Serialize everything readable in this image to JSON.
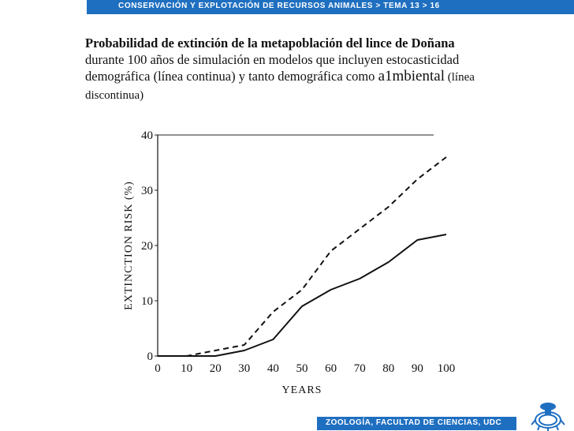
{
  "header": {
    "breadcrumb": "CONSERVACIÓN Y EXPLOTACIÓN DE RECURSOS ANIMALES > TEMA 13 > 16"
  },
  "caption": {
    "bold_part": "Probabilidad de extinción de la metapoblación del lince de Doñana",
    "text_part": " durante 100  años de simulación en modelos que incluyen estocasticidad demográfica (línea continua) y tanto demográfica como ",
    "ambiental_word": "a1mbiental",
    "closing_part": " (línea discontinua)"
  },
  "footer": {
    "label": "ZOOLOGÍA, FACULTAD DE CIENCIAS, UDC"
  },
  "logo": {
    "name": "udc-logo-icon",
    "color": "#1f6fc0"
  },
  "colors": {
    "accent": "#1f6fc0"
  },
  "chart_data": {
    "type": "line",
    "xlabel": "YEARS",
    "ylabel": "EXTINCTION RISK (%)",
    "xlim": [
      0,
      100
    ],
    "ylim": [
      0,
      40
    ],
    "x_ticks": [
      0,
      10,
      20,
      30,
      40,
      50,
      60,
      70,
      80,
      90,
      100
    ],
    "y_ticks": [
      0,
      10,
      20,
      30,
      40
    ],
    "grid": false,
    "series": [
      {
        "style": "solid",
        "x": [
          0,
          10,
          20,
          30,
          40,
          50,
          60,
          70,
          80,
          90,
          100
        ],
        "y": [
          0,
          0,
          0,
          1,
          3,
          9,
          12,
          14,
          17,
          21,
          22
        ]
      },
      {
        "style": "dashed",
        "x": [
          0,
          10,
          20,
          30,
          40,
          50,
          60,
          70,
          80,
          90,
          100
        ],
        "y": [
          0,
          0,
          1,
          2,
          8,
          12,
          19,
          23,
          27,
          32,
          36
        ]
      }
    ]
  }
}
